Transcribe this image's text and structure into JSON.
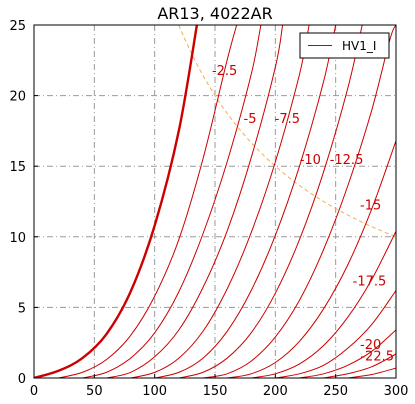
{
  "chart_data": {
    "type": "line",
    "title": "AR13, 4022AR",
    "xlabel": "",
    "ylabel": "",
    "xlim": [
      0,
      300
    ],
    "ylim": [
      0,
      25
    ],
    "x_ticks": [
      "0",
      "50",
      "100",
      "150",
      "200",
      "250",
      "300"
    ],
    "y_ticks": [
      "0",
      "5",
      "10",
      "15",
      "20",
      "25"
    ],
    "grid": true,
    "legend": {
      "position": "top-right",
      "entries": [
        "HV1_I"
      ]
    },
    "colors": {
      "curve": "#cc0000",
      "grid": "#9a9a9a",
      "dissipation": "#f0b050"
    },
    "series": [
      {
        "label": "",
        "bold": true,
        "points": [
          [
            0,
            0
          ],
          [
            20,
            0.5
          ],
          [
            40,
            1.4
          ],
          [
            60,
            3.1
          ],
          [
            80,
            6.1
          ],
          [
            100,
            10.8
          ],
          [
            120,
            17.5
          ],
          [
            135,
            25
          ]
        ]
      },
      {
        "label": "-2.5",
        "points": [
          [
            20,
            0
          ],
          [
            40,
            0.4
          ],
          [
            60,
            1.3
          ],
          [
            80,
            3.0
          ],
          [
            100,
            5.8
          ],
          [
            120,
            9.8
          ],
          [
            140,
            15.5
          ],
          [
            160,
            22.5
          ],
          [
            168,
            25
          ]
        ]
      },
      {
        "label": "-5",
        "points": [
          [
            40,
            0
          ],
          [
            60,
            0.4
          ],
          [
            80,
            1.4
          ],
          [
            100,
            3.2
          ],
          [
            120,
            6.1
          ],
          [
            140,
            10.2
          ],
          [
            160,
            15.3
          ],
          [
            180,
            21.5
          ],
          [
            188,
            25
          ]
        ]
      },
      {
        "label": "-7.5",
        "points": [
          [
            60,
            0
          ],
          [
            80,
            0.4
          ],
          [
            100,
            1.5
          ],
          [
            120,
            3.4
          ],
          [
            140,
            6.4
          ],
          [
            160,
            10.4
          ],
          [
            180,
            15.6
          ],
          [
            200,
            22.0
          ],
          [
            206,
            25
          ]
        ]
      },
      {
        "label": "-10",
        "points": [
          [
            80,
            0
          ],
          [
            100,
            0.4
          ],
          [
            120,
            1.4
          ],
          [
            140,
            3.3
          ],
          [
            160,
            6.3
          ],
          [
            180,
            10.3
          ],
          [
            200,
            15.3
          ],
          [
            220,
            21.5
          ],
          [
            228,
            25
          ]
        ]
      },
      {
        "label": "-12.5",
        "points": [
          [
            100,
            0
          ],
          [
            120,
            0.4
          ],
          [
            140,
            1.4
          ],
          [
            160,
            3.3
          ],
          [
            180,
            6.2
          ],
          [
            200,
            10.1
          ],
          [
            220,
            15.0
          ],
          [
            240,
            21.0
          ],
          [
            250,
            25
          ]
        ]
      },
      {
        "label": "-15",
        "points": [
          [
            120,
            0
          ],
          [
            140,
            0.4
          ],
          [
            160,
            1.4
          ],
          [
            180,
            3.2
          ],
          [
            200,
            6.0
          ],
          [
            220,
            9.8
          ],
          [
            240,
            14.6
          ],
          [
            260,
            20.5
          ],
          [
            272,
            25
          ]
        ]
      },
      {
        "label": "-17.5",
        "points": [
          [
            140,
            0
          ],
          [
            160,
            0.3
          ],
          [
            180,
            1.2
          ],
          [
            200,
            2.9
          ],
          [
            220,
            5.5
          ],
          [
            240,
            9.1
          ],
          [
            260,
            13.6
          ],
          [
            280,
            19.0
          ],
          [
            295,
            24.0
          ],
          [
            300,
            25
          ]
        ]
      },
      {
        "label": "-20",
        "points": [
          [
            160,
            0
          ],
          [
            180,
            0.3
          ],
          [
            200,
            1.1
          ],
          [
            220,
            2.6
          ],
          [
            240,
            4.9
          ],
          [
            260,
            8.0
          ],
          [
            280,
            12.0
          ],
          [
            300,
            16.8
          ]
        ]
      },
      {
        "label": "-22.5",
        "points": [
          [
            180,
            0
          ],
          [
            200,
            0.3
          ],
          [
            220,
            1.0
          ],
          [
            240,
            2.3
          ],
          [
            260,
            4.3
          ],
          [
            280,
            7.0
          ],
          [
            300,
            10.4
          ]
        ]
      },
      {
        "label": "",
        "points": [
          [
            200,
            0
          ],
          [
            220,
            0.3
          ],
          [
            240,
            0.9
          ],
          [
            260,
            2.1
          ],
          [
            280,
            3.8
          ],
          [
            300,
            6.2
          ]
        ]
      },
      {
        "label": "",
        "points": [
          [
            220,
            0
          ],
          [
            240,
            0.3
          ],
          [
            260,
            0.9
          ],
          [
            280,
            1.9
          ],
          [
            300,
            3.4
          ]
        ]
      },
      {
        "label": "",
        "points": [
          [
            240,
            0
          ],
          [
            260,
            0.3
          ],
          [
            280,
            0.8
          ],
          [
            300,
            1.7
          ]
        ]
      },
      {
        "label": "",
        "points": [
          [
            260,
            0
          ],
          [
            280,
            0.25
          ],
          [
            300,
            0.7
          ]
        ]
      }
    ],
    "label_positions": [
      {
        "text": "-2.5",
        "x": 158,
        "y": 21.8
      },
      {
        "text": "-5",
        "x": 179,
        "y": 18.4
      },
      {
        "text": "-7.5",
        "x": 210,
        "y": 18.4
      },
      {
        "text": "-10",
        "x": 229,
        "y": 15.5
      },
      {
        "text": "-12.5",
        "x": 259,
        "y": 15.5
      },
      {
        "text": "-15",
        "x": 279,
        "y": 12.3
      },
      {
        "text": "-17.5",
        "x": 278,
        "y": 6.9
      },
      {
        "text": "-20",
        "x": 279,
        "y": 2.4
      },
      {
        "text": "-22.5",
        "x": 300,
        "y": 1.6
      }
    ],
    "dissipation_curve": {
      "power_w": 3000,
      "x_from": 120,
      "x_to": 300
    }
  }
}
